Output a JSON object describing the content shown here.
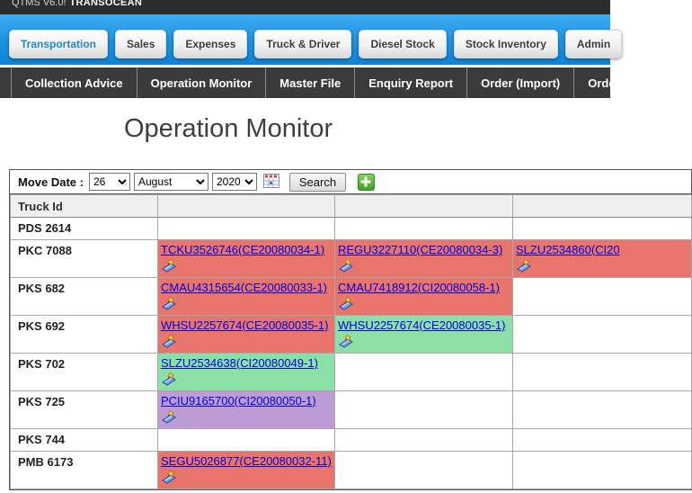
{
  "titlebar": {
    "app": "QTMS V6.0!",
    "company": "TRANSOCEAN"
  },
  "tabs": [
    {
      "label": "Transportation",
      "active": true
    },
    {
      "label": "Sales",
      "active": false
    },
    {
      "label": "Expenses",
      "active": false
    },
    {
      "label": "Truck & Driver",
      "active": false
    },
    {
      "label": "Diesel Stock",
      "active": false
    },
    {
      "label": "Stock Inventory",
      "active": false
    },
    {
      "label": "Admin",
      "active": false
    }
  ],
  "menu": {
    "items": [
      "Collection Advice",
      "Operation Monitor",
      "Master File",
      "Enquiry Report",
      "Order (Import)",
      "Orde"
    ]
  },
  "page": {
    "title": "Operation Monitor"
  },
  "filter": {
    "label": "Move Date :",
    "day": "26",
    "month": "August",
    "year": "2020",
    "calendar_icon": "calendar-icon",
    "search_label": "Search",
    "add_icon": "plus-icon"
  },
  "table": {
    "header": [
      "Truck Id",
      "",
      "",
      ""
    ],
    "rows": [
      {
        "truck": "PDS 2614",
        "cells": []
      },
      {
        "truck": "PKC 7088",
        "cells": [
          {
            "text": "TCKU3526746(CE20080034-1)",
            "color": "red"
          },
          {
            "text": "REGU3227110(CE20080034-3)",
            "color": "red"
          },
          {
            "text": "SLZU2534860(CI20",
            "color": "red"
          }
        ]
      },
      {
        "truck": "PKS 682",
        "cells": [
          {
            "text": "CMAU4315654(CE20080033-1)",
            "color": "red"
          },
          {
            "text": "CMAU7418912(CI20080058-1)",
            "color": "red"
          }
        ]
      },
      {
        "truck": "PKS 692",
        "cells": [
          {
            "text": "WHSU2257674(CE20080035-1)",
            "color": "red"
          },
          {
            "text": "WHSU2257674(CE20080035-1)",
            "color": "green"
          }
        ]
      },
      {
        "truck": "PKS 702",
        "cells": [
          {
            "text": "SLZU2534638(CI20080049-1)",
            "color": "green"
          }
        ]
      },
      {
        "truck": "PKS 725",
        "cells": [
          {
            "text": "PCIU9165700(CI20080050-1)",
            "color": "purple"
          }
        ]
      },
      {
        "truck": "PKS 744",
        "cells": []
      },
      {
        "truck": "PMB 6173",
        "cells": [
          {
            "text": "SEGU5026877(CE20080032-11)",
            "color": "red"
          }
        ]
      }
    ]
  },
  "colors": {
    "red": "#E8756B",
    "green": "#8BE0A8",
    "purple": "#BD9BD3",
    "accent_blue": "#1E97E4",
    "topbar_bg": "#2C2C2C",
    "menubar_bg": "#3B3B3B",
    "link": "#0000DE"
  }
}
